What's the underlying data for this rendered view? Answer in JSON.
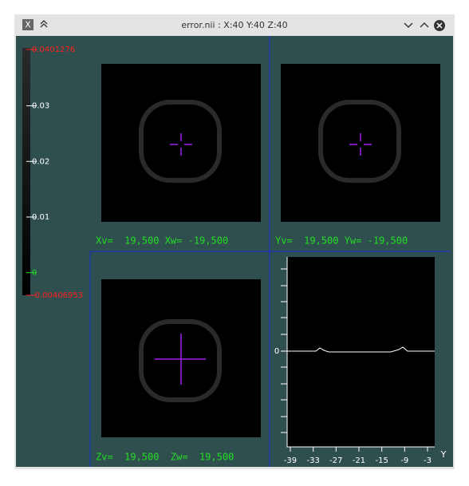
{
  "window": {
    "title": "error.nii : X:40 Y:40 Z:40"
  },
  "colorbar": {
    "labels": [
      0.0401276,
      0.03,
      0.02,
      0.01,
      0,
      -0.00406953
    ]
  },
  "views": [
    {
      "label": "Xv=  19,500 Xw= -19,500"
    },
    {
      "label": "Yv=  19,500 Yw= -19,500"
    },
    {
      "label": "Zv=  19,500  Zw=  19,500"
    }
  ],
  "plot": {
    "y_label": "0",
    "x_ticks": [
      -39,
      -33,
      -27,
      -21,
      -15,
      -9,
      -3
    ],
    "axis_name": "Y"
  }
}
